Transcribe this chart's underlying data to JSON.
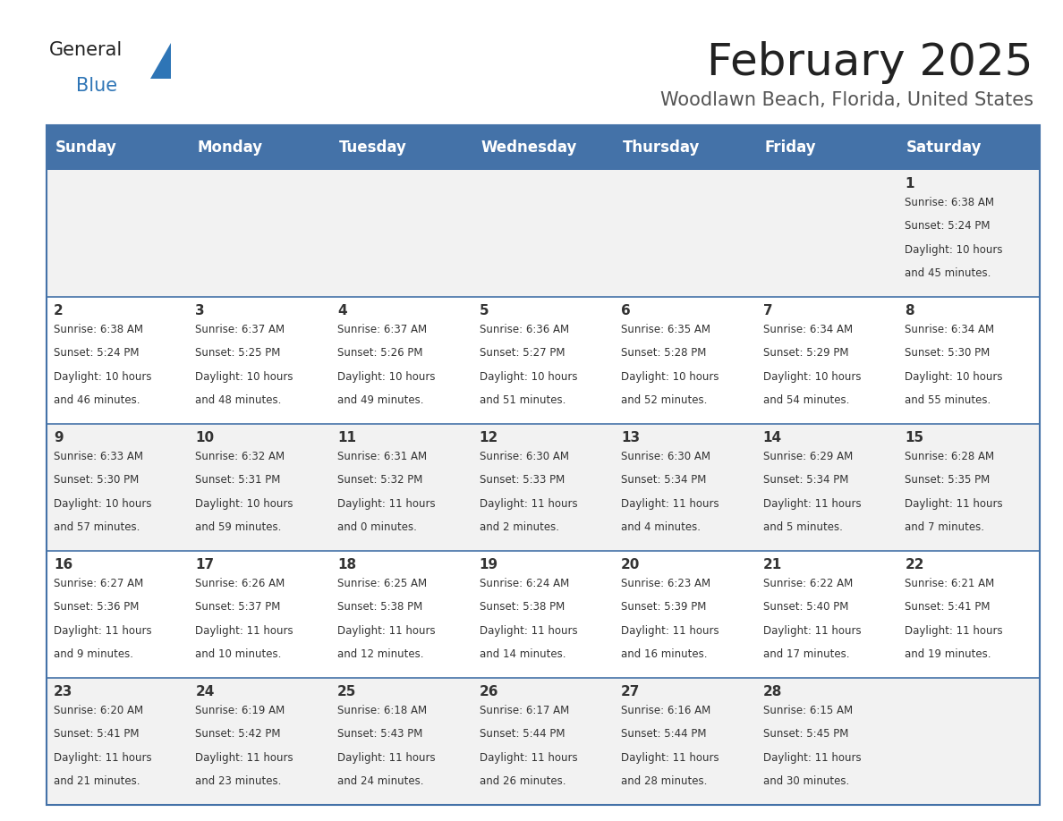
{
  "title": "February 2025",
  "subtitle": "Woodlawn Beach, Florida, United States",
  "header_color": "#4472A8",
  "header_text_color": "#FFFFFF",
  "cell_bg_even": "#F2F2F2",
  "cell_bg_odd": "#FFFFFF",
  "border_color": "#4472A8",
  "text_color": "#333333",
  "days_of_week": [
    "Sunday",
    "Monday",
    "Tuesday",
    "Wednesday",
    "Thursday",
    "Friday",
    "Saturday"
  ],
  "title_fontsize": 36,
  "subtitle_fontsize": 15,
  "header_fontsize": 12,
  "day_num_fontsize": 11,
  "info_fontsize": 8.5,
  "calendar": [
    [
      {
        "day": "",
        "sunrise": "",
        "sunset": "",
        "daylight": ""
      },
      {
        "day": "",
        "sunrise": "",
        "sunset": "",
        "daylight": ""
      },
      {
        "day": "",
        "sunrise": "",
        "sunset": "",
        "daylight": ""
      },
      {
        "day": "",
        "sunrise": "",
        "sunset": "",
        "daylight": ""
      },
      {
        "day": "",
        "sunrise": "",
        "sunset": "",
        "daylight": ""
      },
      {
        "day": "",
        "sunrise": "",
        "sunset": "",
        "daylight": ""
      },
      {
        "day": "1",
        "sunrise": "6:38 AM",
        "sunset": "5:24 PM",
        "daylight": "10 hours\nand 45 minutes."
      }
    ],
    [
      {
        "day": "2",
        "sunrise": "6:38 AM",
        "sunset": "5:24 PM",
        "daylight": "10 hours\nand 46 minutes."
      },
      {
        "day": "3",
        "sunrise": "6:37 AM",
        "sunset": "5:25 PM",
        "daylight": "10 hours\nand 48 minutes."
      },
      {
        "day": "4",
        "sunrise": "6:37 AM",
        "sunset": "5:26 PM",
        "daylight": "10 hours\nand 49 minutes."
      },
      {
        "day": "5",
        "sunrise": "6:36 AM",
        "sunset": "5:27 PM",
        "daylight": "10 hours\nand 51 minutes."
      },
      {
        "day": "6",
        "sunrise": "6:35 AM",
        "sunset": "5:28 PM",
        "daylight": "10 hours\nand 52 minutes."
      },
      {
        "day": "7",
        "sunrise": "6:34 AM",
        "sunset": "5:29 PM",
        "daylight": "10 hours\nand 54 minutes."
      },
      {
        "day": "8",
        "sunrise": "6:34 AM",
        "sunset": "5:30 PM",
        "daylight": "10 hours\nand 55 minutes."
      }
    ],
    [
      {
        "day": "9",
        "sunrise": "6:33 AM",
        "sunset": "5:30 PM",
        "daylight": "10 hours\nand 57 minutes."
      },
      {
        "day": "10",
        "sunrise": "6:32 AM",
        "sunset": "5:31 PM",
        "daylight": "10 hours\nand 59 minutes."
      },
      {
        "day": "11",
        "sunrise": "6:31 AM",
        "sunset": "5:32 PM",
        "daylight": "11 hours\nand 0 minutes."
      },
      {
        "day": "12",
        "sunrise": "6:30 AM",
        "sunset": "5:33 PM",
        "daylight": "11 hours\nand 2 minutes."
      },
      {
        "day": "13",
        "sunrise": "6:30 AM",
        "sunset": "5:34 PM",
        "daylight": "11 hours\nand 4 minutes."
      },
      {
        "day": "14",
        "sunrise": "6:29 AM",
        "sunset": "5:34 PM",
        "daylight": "11 hours\nand 5 minutes."
      },
      {
        "day": "15",
        "sunrise": "6:28 AM",
        "sunset": "5:35 PM",
        "daylight": "11 hours\nand 7 minutes."
      }
    ],
    [
      {
        "day": "16",
        "sunrise": "6:27 AM",
        "sunset": "5:36 PM",
        "daylight": "11 hours\nand 9 minutes."
      },
      {
        "day": "17",
        "sunrise": "6:26 AM",
        "sunset": "5:37 PM",
        "daylight": "11 hours\nand 10 minutes."
      },
      {
        "day": "18",
        "sunrise": "6:25 AM",
        "sunset": "5:38 PM",
        "daylight": "11 hours\nand 12 minutes."
      },
      {
        "day": "19",
        "sunrise": "6:24 AM",
        "sunset": "5:38 PM",
        "daylight": "11 hours\nand 14 minutes."
      },
      {
        "day": "20",
        "sunrise": "6:23 AM",
        "sunset": "5:39 PM",
        "daylight": "11 hours\nand 16 minutes."
      },
      {
        "day": "21",
        "sunrise": "6:22 AM",
        "sunset": "5:40 PM",
        "daylight": "11 hours\nand 17 minutes."
      },
      {
        "day": "22",
        "sunrise": "6:21 AM",
        "sunset": "5:41 PM",
        "daylight": "11 hours\nand 19 minutes."
      }
    ],
    [
      {
        "day": "23",
        "sunrise": "6:20 AM",
        "sunset": "5:41 PM",
        "daylight": "11 hours\nand 21 minutes."
      },
      {
        "day": "24",
        "sunrise": "6:19 AM",
        "sunset": "5:42 PM",
        "daylight": "11 hours\nand 23 minutes."
      },
      {
        "day": "25",
        "sunrise": "6:18 AM",
        "sunset": "5:43 PM",
        "daylight": "11 hours\nand 24 minutes."
      },
      {
        "day": "26",
        "sunrise": "6:17 AM",
        "sunset": "5:44 PM",
        "daylight": "11 hours\nand 26 minutes."
      },
      {
        "day": "27",
        "sunrise": "6:16 AM",
        "sunset": "5:44 PM",
        "daylight": "11 hours\nand 28 minutes."
      },
      {
        "day": "28",
        "sunrise": "6:15 AM",
        "sunset": "5:45 PM",
        "daylight": "11 hours\nand 30 minutes."
      },
      {
        "day": "",
        "sunrise": "",
        "sunset": "",
        "daylight": ""
      }
    ]
  ]
}
